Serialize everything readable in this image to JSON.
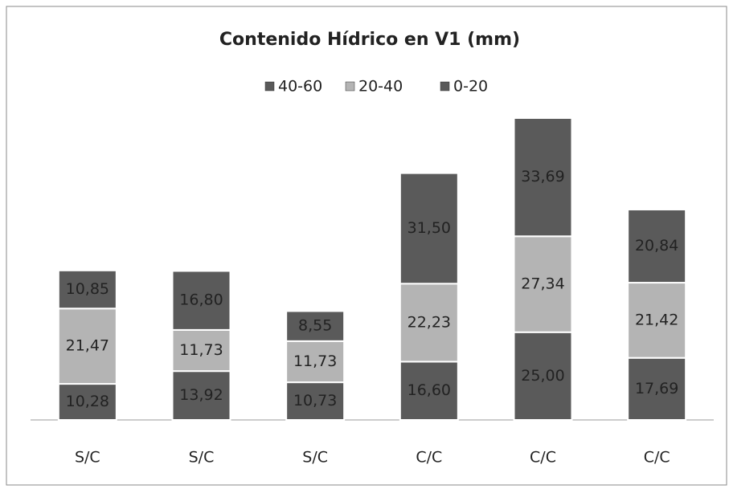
{
  "chart_data": {
    "type": "stacked_bar",
    "title": "Contenido Hídrico en V1 (mm)",
    "categories": [
      "S/C",
      "S/C",
      "S/C",
      "C/C",
      "C/C",
      "C/C"
    ],
    "series": [
      {
        "name": "40-60",
        "color": "#5a5a5a",
        "values": [
          10.85,
          16.8,
          8.55,
          31.5,
          33.69,
          20.84
        ],
        "value_labels": [
          "10,85",
          "16,80",
          "8,55",
          "31,50",
          "33,69",
          "20,84"
        ]
      },
      {
        "name": "20-40",
        "color": "#b4b4b4",
        "values": [
          21.47,
          11.73,
          11.73,
          22.23,
          27.34,
          21.42
        ],
        "value_labels": [
          "21,47",
          "11,73",
          "11,73",
          "22,23",
          "27,34",
          "21,42"
        ]
      },
      {
        "name": "0-20",
        "color": "#5a5a5a",
        "values": [
          10.28,
          13.92,
          10.73,
          16.6,
          25.0,
          17.69
        ],
        "value_labels": [
          "10,28",
          "13,92",
          "10,73",
          "16,60",
          "25,00",
          "17,69"
        ]
      }
    ]
  }
}
